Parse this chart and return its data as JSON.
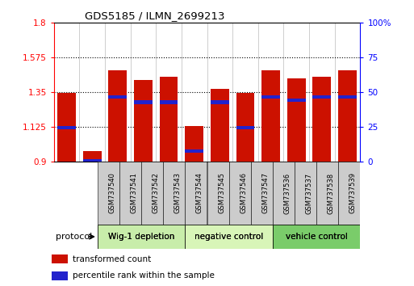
{
  "title": "GDS5185 / ILMN_2699213",
  "samples": [
    "GSM737540",
    "GSM737541",
    "GSM737542",
    "GSM737543",
    "GSM737544",
    "GSM737545",
    "GSM737546",
    "GSM737547",
    "GSM737536",
    "GSM737537",
    "GSM737538",
    "GSM737539"
  ],
  "bar_values": [
    1.345,
    0.97,
    1.49,
    1.43,
    1.45,
    1.13,
    1.37,
    1.345,
    1.49,
    1.44,
    1.45,
    1.49
  ],
  "blue_marker_values": [
    1.12,
    0.905,
    1.32,
    1.285,
    1.285,
    0.97,
    1.285,
    1.12,
    1.32,
    1.3,
    1.32,
    1.32
  ],
  "bar_bottom": 0.9,
  "y_min": 0.9,
  "y_max": 1.8,
  "y_ticks_left": [
    0.9,
    1.125,
    1.35,
    1.575,
    1.8
  ],
  "y_tick_labels_left": [
    "0.9",
    "1.125",
    "1.35",
    "1.575",
    "1.8"
  ],
  "y_ticks_right_labels": [
    "0",
    "25",
    "50",
    "75",
    "100%"
  ],
  "bar_color": "#cc1100",
  "blue_color": "#2222cc",
  "group_labels": [
    "Wig-1 depletion",
    "negative control",
    "vehicle control"
  ],
  "group_ranges": [
    [
      0,
      4
    ],
    [
      4,
      8
    ],
    [
      8,
      12
    ]
  ],
  "group_colors": [
    "#c8edaa",
    "#d8f5b8",
    "#7acc6a"
  ],
  "protocol_label": "protocol",
  "legend_red": "transformed count",
  "legend_blue": "percentile rank within the sample",
  "grid_dotted_values": [
    1.125,
    1.35,
    1.575
  ],
  "bar_width": 0.72,
  "sample_box_color": "#cccccc",
  "sep_color": "#999999"
}
